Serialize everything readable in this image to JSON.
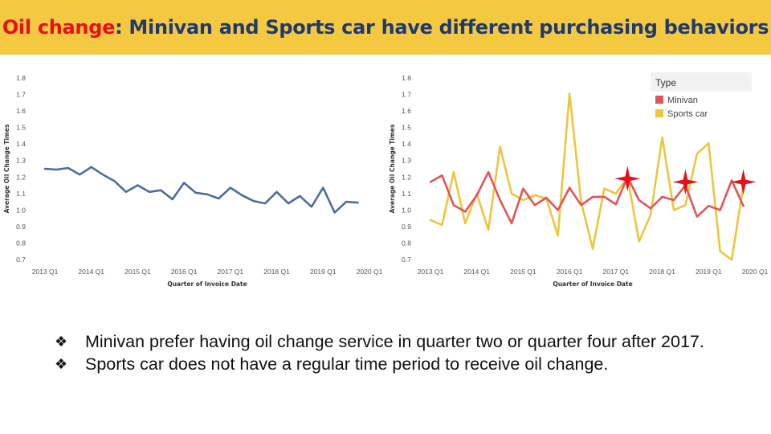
{
  "title": {
    "highlight": "Oil change",
    "rest": ": Minivan and Sports car have different purchasing behaviors"
  },
  "colors": {
    "title_bar": "#f5c842",
    "title_highlight": "#e8101a",
    "title_text": "#1f3a6e",
    "series_blue": "#4e6e9a",
    "minivan": "#e05656",
    "sports_car": "#ecc63e",
    "star": "#e8101a"
  },
  "bullet_marker": "❖",
  "bullets": [
    "Minivan prefer having oil change service in quarter two or quarter four after 2017.",
    "Sports car does not have a regular time period to receive oil change."
  ],
  "chart_data": [
    {
      "type": "line",
      "ylabel": "Average Oil Change Times",
      "xlabel": "Quarter of Invoice Date",
      "ylim": [
        0.7,
        1.8
      ],
      "yticks": [
        "0.7",
        "0.8",
        "0.9",
        "1.0",
        "1.1",
        "1.2",
        "1.3",
        "1.4",
        "1.5",
        "1.6",
        "1.7",
        "1.8"
      ],
      "xticks": [
        "2013 Q1",
        "2014 Q1",
        "2015 Q1",
        "2016 Q1",
        "2017 Q1",
        "2018 Q1",
        "2019 Q1",
        "2020 Q1"
      ],
      "x": [
        "2013 Q1",
        "2013 Q2",
        "2013 Q3",
        "2013 Q4",
        "2014 Q1",
        "2014 Q2",
        "2014 Q3",
        "2014 Q4",
        "2015 Q1",
        "2015 Q2",
        "2015 Q3",
        "2015 Q4",
        "2016 Q1",
        "2016 Q2",
        "2016 Q3",
        "2016 Q4",
        "2017 Q1",
        "2017 Q2",
        "2017 Q3",
        "2017 Q4",
        "2018 Q1",
        "2018 Q2",
        "2018 Q3",
        "2018 Q4",
        "2019 Q1",
        "2019 Q2",
        "2019 Q3",
        "2019 Q4",
        "2020 Q1"
      ],
      "series": [
        {
          "values": [
            1.25,
            1.245,
            1.255,
            1.215,
            1.26,
            1.215,
            1.175,
            1.11,
            1.15,
            1.11,
            1.12,
            1.065,
            1.165,
            1.105,
            1.095,
            1.07,
            1.135,
            1.09,
            1.055,
            1.04,
            1.11,
            1.04,
            1.085,
            1.02,
            1.135,
            0.985,
            1.05,
            1.045,
            null
          ]
        }
      ],
      "grid": false,
      "legend": "none"
    },
    {
      "type": "line",
      "ylabel": "Average Oil Change Times",
      "xlabel": "Quarter of Invoice Date",
      "ylim": [
        0.7,
        1.8
      ],
      "yticks": [
        "0.7",
        "0.8",
        "0.9",
        "1.0",
        "1.1",
        "1.2",
        "1.3",
        "1.4",
        "1.5",
        "1.6",
        "1.7",
        "1.8"
      ],
      "xticks": [
        "2013 Q1",
        "2014 Q1",
        "2015 Q1",
        "2016 Q1",
        "2017 Q1",
        "2018 Q1",
        "2019 Q1",
        "2020 Q1"
      ],
      "x": [
        "2013 Q1",
        "2013 Q2",
        "2013 Q3",
        "2013 Q4",
        "2014 Q1",
        "2014 Q2",
        "2014 Q3",
        "2014 Q4",
        "2015 Q1",
        "2015 Q2",
        "2015 Q3",
        "2015 Q4",
        "2016 Q1",
        "2016 Q2",
        "2016 Q3",
        "2016 Q4",
        "2017 Q1",
        "2017 Q2",
        "2017 Q3",
        "2017 Q4",
        "2018 Q1",
        "2018 Q2",
        "2018 Q3",
        "2018 Q4",
        "2019 Q1",
        "2019 Q2",
        "2019 Q3",
        "2019 Q4",
        "2020 Q1"
      ],
      "legend_title": "Type",
      "legend": "top-right",
      "grid": false,
      "series": [
        {
          "name": "Minivan",
          "values": [
            1.17,
            1.21,
            1.03,
            0.99,
            1.09,
            1.23,
            1.06,
            0.92,
            1.13,
            1.03,
            1.075,
            1.0,
            1.135,
            1.03,
            1.08,
            1.08,
            1.035,
            1.2,
            1.06,
            1.01,
            1.08,
            1.06,
            1.15,
            0.96,
            1.025,
            1.0,
            1.18,
            1.025,
            null
          ]
        },
        {
          "name": "Sports car",
          "values": [
            0.94,
            0.91,
            1.23,
            0.92,
            1.1,
            0.88,
            1.385,
            1.1,
            1.06,
            1.09,
            1.07,
            0.845,
            1.705,
            1.05,
            0.765,
            1.13,
            1.1,
            1.2,
            0.81,
            0.97,
            1.44,
            1.0,
            1.03,
            1.34,
            1.405,
            0.75,
            0.7,
            1.15,
            null
          ]
        }
      ],
      "annotations": [
        {
          "marker": "star",
          "x": "2017 Q2",
          "y": 1.19
        },
        {
          "marker": "star",
          "x": "2018 Q3",
          "y": 1.17
        },
        {
          "marker": "star",
          "x": "2019 Q4",
          "y": 1.17
        }
      ]
    }
  ]
}
